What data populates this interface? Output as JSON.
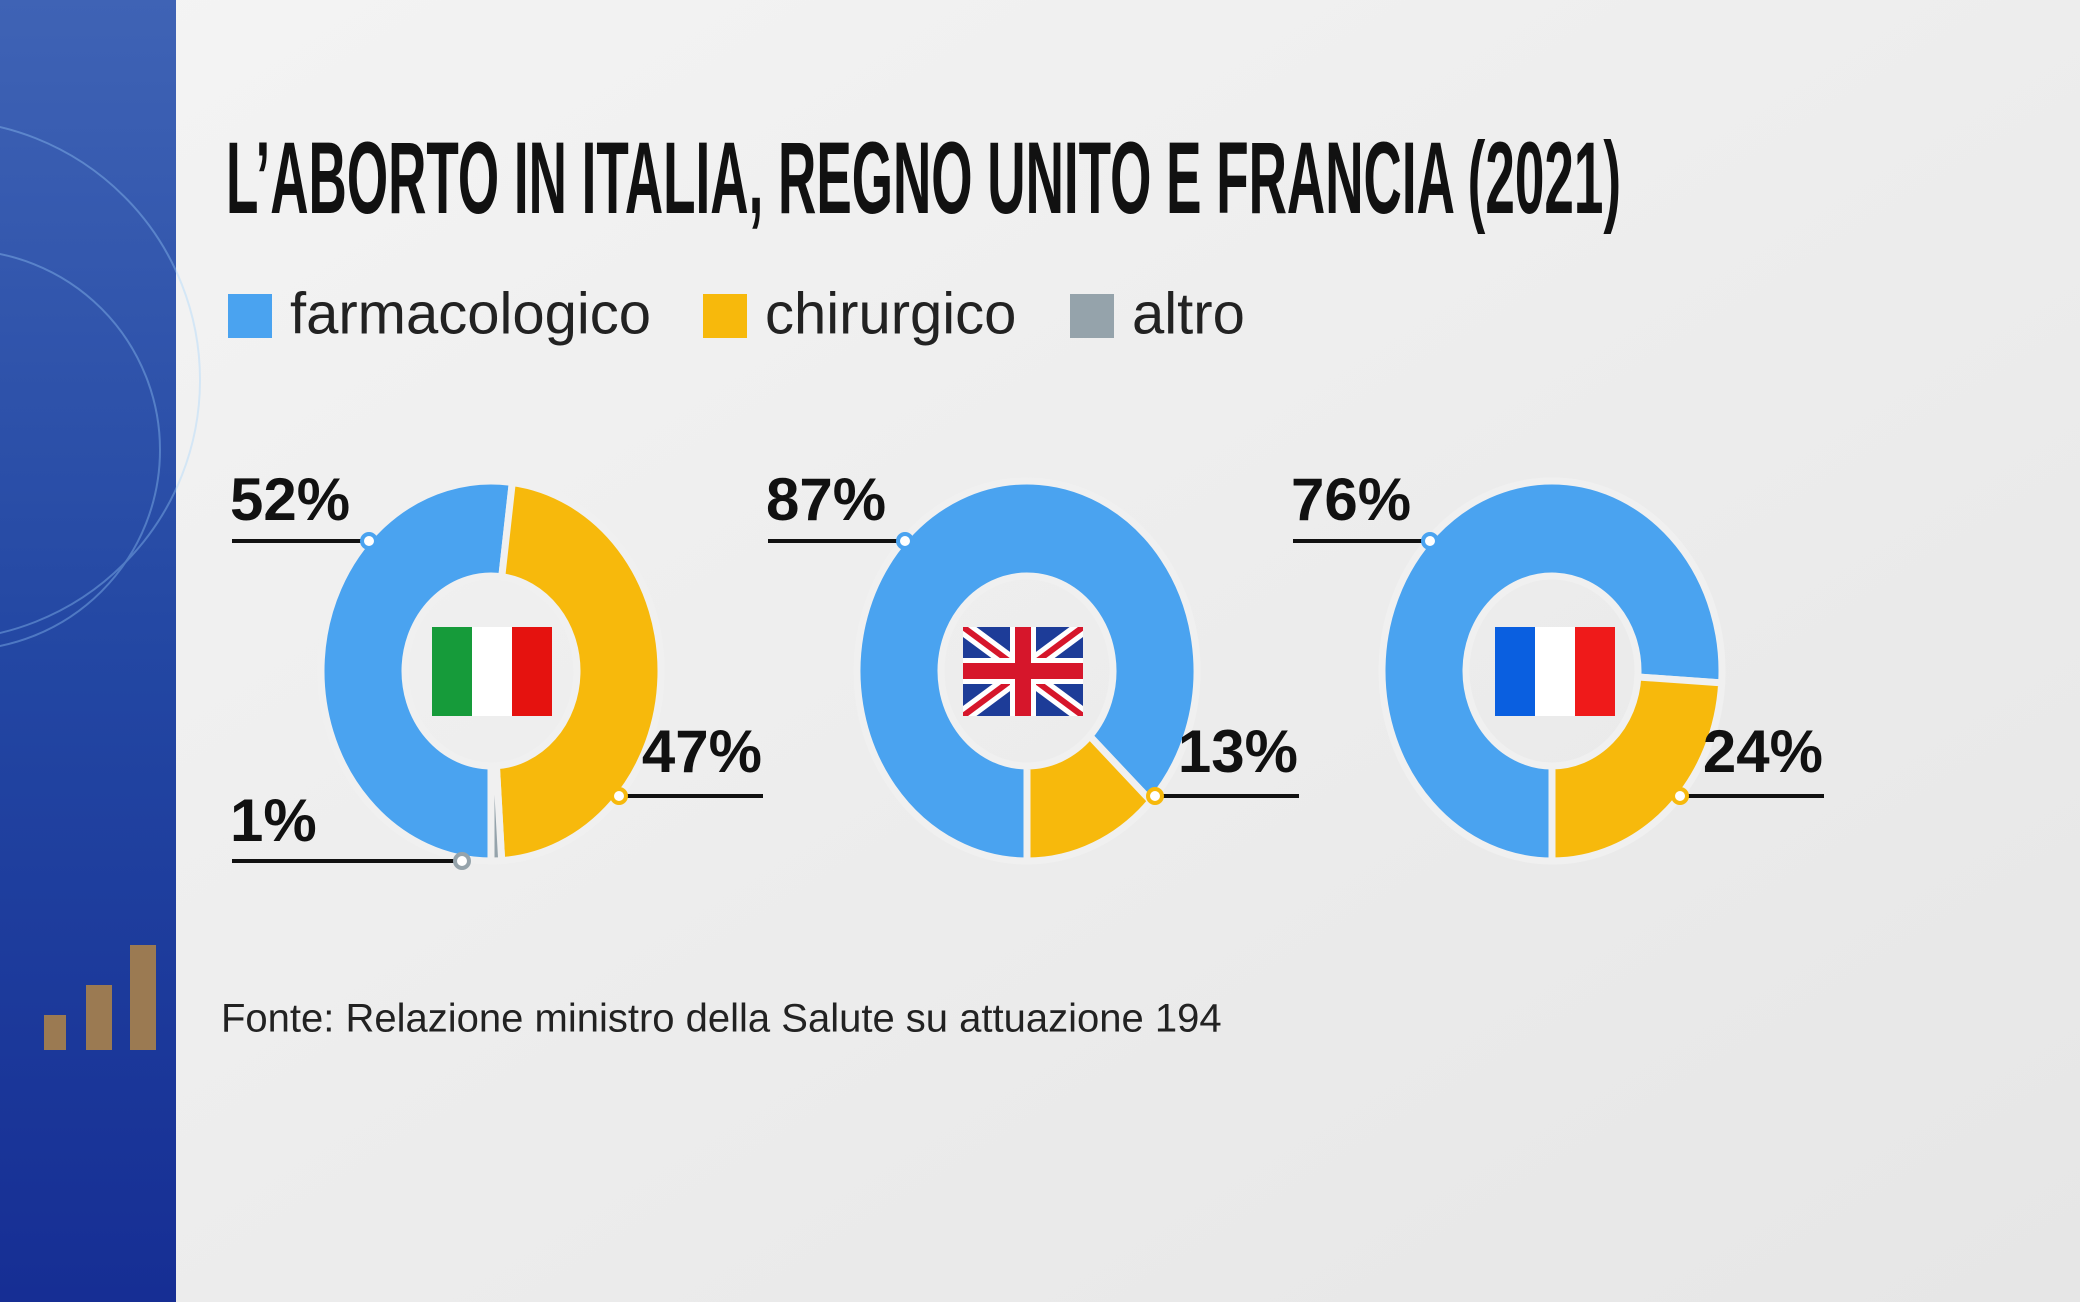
{
  "chart_data": {
    "type": "donut",
    "title": "L’ABORTO IN ITALIA, REGNO UNITO E FRANCIA (2021)",
    "categories": [
      "farmacologico",
      "chirurgico",
      "altro"
    ],
    "colors": [
      "#4aa3f0",
      "#f7b90c",
      "#95a3ab"
    ],
    "series": [
      {
        "values": [
          52,
          47,
          1
        ],
        "value_labels": [
          "52%",
          "47%",
          "1%"
        ]
      },
      {
        "values": [
          87,
          13,
          null
        ],
        "value_labels": [
          "87%",
          "13%",
          null
        ]
      },
      {
        "values": [
          76,
          24,
          null
        ],
        "value_labels": [
          "76%",
          "24%",
          null
        ]
      }
    ],
    "source": "Fonte: Relazione ministro della Salute su attuazione 194"
  }
}
